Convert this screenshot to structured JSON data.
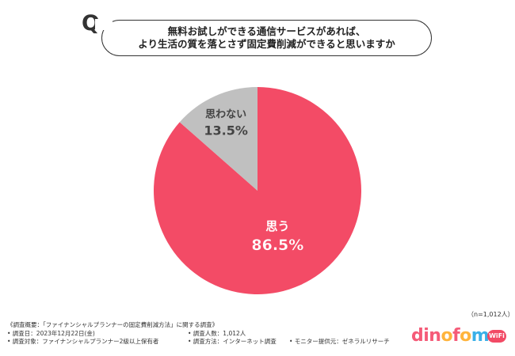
{
  "question": {
    "marker": "Q",
    "line1": "無料お試しができる通信サービスがあれば、",
    "line2": "より生活の質を落とさず固定費削減ができると思いますか"
  },
  "chart_data": {
    "type": "pie",
    "slices": [
      {
        "label": "思う",
        "value": 86.5,
        "display": "86.5%",
        "color": "#f34b66"
      },
      {
        "label": "思わない",
        "value": 13.5,
        "display": "13.5%",
        "color": "#c0c0c0"
      }
    ],
    "start": "top",
    "direction": "clockwise"
  },
  "sample_note": "（n=1,012人）",
  "footnote": {
    "title": "《調査概要：「ファイナンシャルプランナーの固定費削減方法」に関する調査》",
    "date": "• 調査日：2023年12月22日(金)",
    "count": "• 調査人数：1,012人",
    "target": "• 調査対象：ファイナンシャルプランナー2級以上保有者",
    "method": "• 調査方法：インターネット調査",
    "provider": "• モニター提供元：ゼネラルリサーチ"
  },
  "logo": {
    "d": "d",
    "i": "i",
    "n": "n",
    "o": "o",
    "f": "f",
    "o2": "o",
    "m": "m",
    "o3": "o",
    "wifi": "WiFi"
  }
}
